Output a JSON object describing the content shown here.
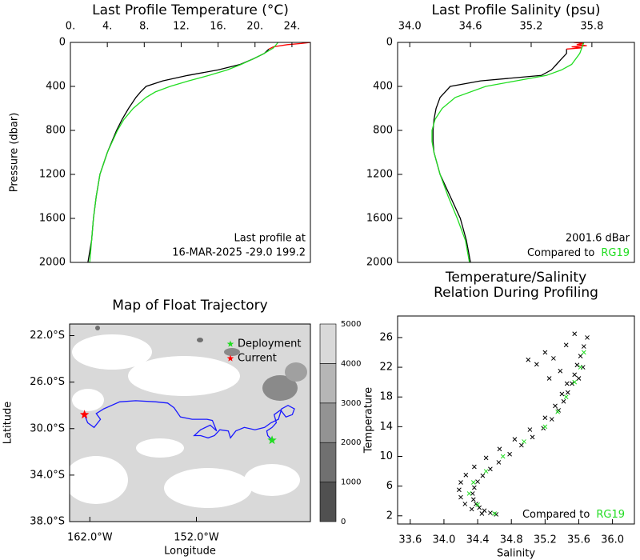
{
  "chart_data": [
    {
      "type": "line",
      "title": "Last Profile Temperature (°C)",
      "y_label": "Pressure (dbar)",
      "x_axis_position": "top",
      "y_inverted": true,
      "xlim": [
        0,
        26
      ],
      "xticks": [
        {
          "value": 0,
          "label": "0."
        },
        {
          "value": 4,
          "label": "4."
        },
        {
          "value": 8,
          "label": "8."
        },
        {
          "value": 12,
          "label": "12."
        },
        {
          "value": 16,
          "label": "16."
        },
        {
          "value": 20,
          "label": "20."
        },
        {
          "value": 24,
          "label": "24."
        }
      ],
      "ylim": [
        0,
        2000
      ],
      "yticks": [
        0,
        400,
        800,
        1200,
        1600,
        2000
      ],
      "series": [
        {
          "color": "#000000",
          "y": [
            60,
            100,
            150,
            200,
            250,
            300,
            350,
            400,
            450,
            500,
            600,
            700,
            800,
            1000,
            1200,
            1400,
            1600,
            1800,
            2000
          ],
          "x": [
            21.5,
            21,
            19.8,
            18.4,
            16,
            12.7,
            10,
            8.2,
            7.6,
            7.1,
            6.3,
            5.6,
            5,
            4,
            3.2,
            2.8,
            2.5,
            2.3,
            1.9
          ]
        },
        {
          "color": "#ff0000",
          "y": [
            0,
            10,
            20,
            40,
            60
          ],
          "x": [
            26,
            25,
            23.5,
            22,
            21.5
          ]
        },
        {
          "color": "#22dd22",
          "y": [
            0,
            50,
            100,
            150,
            200,
            250,
            300,
            350,
            400,
            450,
            500,
            600,
            700,
            800,
            1000,
            1200,
            1400,
            1600,
            1800,
            2000
          ],
          "x": [
            22.5,
            22,
            21,
            19.8,
            18.5,
            17,
            15,
            12.8,
            10.8,
            9.2,
            8.2,
            6.8,
            5.8,
            5.1,
            4,
            3.2,
            2.8,
            2.5,
            2.3,
            2.1
          ]
        }
      ],
      "annotations": [
        "Last profile at",
        "16-MAR-2025   -29.0 199.2"
      ]
    },
    {
      "type": "line",
      "title": "Last Profile Salinity (psu)",
      "x_axis_position": "top",
      "y_inverted": true,
      "xlim": [
        33.88,
        36.22
      ],
      "xticks": [
        {
          "value": 34,
          "label": "34.0"
        },
        34.6,
        35.2,
        35.8
      ],
      "ylim": [
        0,
        2000
      ],
      "yticks": [
        0,
        400,
        800,
        1200,
        1600,
        2000
      ],
      "series": [
        {
          "color": "#000000",
          "y": [
            60,
            100,
            150,
            200,
            250,
            300,
            350,
            400,
            500,
            600,
            700,
            800,
            900,
            1000,
            1200,
            1400,
            1600,
            1800,
            2000
          ],
          "x": [
            35.55,
            35.55,
            35.5,
            35.45,
            35.4,
            35.3,
            34.7,
            34.4,
            34.3,
            34.26,
            34.24,
            34.23,
            34.23,
            34.24,
            34.3,
            34.4,
            34.5,
            34.56,
            34.6
          ]
        },
        {
          "color": "#ff0000",
          "y": [
            0,
            10,
            20,
            30,
            40,
            50,
            60
          ],
          "x": [
            35.62,
            35.72,
            35.65,
            35.75,
            35.6,
            35.7,
            35.55
          ]
        },
        {
          "color": "#22dd22",
          "y": [
            0,
            100,
            200,
            250,
            300,
            350,
            400,
            500,
            600,
            700,
            800,
            900,
            1000,
            1200,
            1400,
            1600,
            1800,
            2000
          ],
          "x": [
            35.72,
            35.68,
            35.6,
            35.5,
            35.35,
            35.05,
            34.75,
            34.45,
            34.32,
            34.25,
            34.22,
            34.22,
            34.24,
            34.3,
            34.38,
            34.47,
            34.55,
            34.59
          ]
        }
      ],
      "annotations": [
        "2001.6 dBar"
      ],
      "comparison": {
        "text": "Compared to",
        "reference": "RG19",
        "reference_color": "#22dd22"
      }
    },
    {
      "type": "map",
      "title": "Map of Float Trajectory",
      "x_label": "Longitude",
      "y_label": "Latitude",
      "x_axis_position": "bottom",
      "xlim": [
        -163.9,
        -141.3
      ],
      "xticks": [
        {
          "value": -162,
          "label": "162.0°W"
        },
        {
          "value": -152,
          "label": "152.0°W"
        }
      ],
      "ylim": [
        -38,
        -21
      ],
      "yticks": [
        {
          "value": -22,
          "label": "22.0°S"
        },
        {
          "value": -26,
          "label": "26.0°S"
        },
        {
          "value": -30,
          "label": "30.0°S"
        },
        {
          "value": -34,
          "label": "34.0°S"
        },
        {
          "value": -38,
          "label": "38.0°S"
        }
      ],
      "series": [
        {
          "color": "#1a1aff",
          "x": [
            -144.9,
            -145.3,
            -145.4,
            -144.9,
            -144.5,
            -144.7,
            -144.1,
            -143.6,
            -143.0,
            -142.8,
            -143.4,
            -144.0,
            -144.3,
            -145.0,
            -145.6,
            -146.5,
            -147.5,
            -148.3,
            -148.8,
            -149.0,
            -149.8,
            -150.3,
            -150.9,
            -151.6,
            -152.2,
            -151.6,
            -150.7,
            -150.1,
            -150.5,
            -151.0,
            -152.4,
            -153.5,
            -154.1,
            -154.7,
            -155.8,
            -157.7,
            -159.2,
            -160.7,
            -161.4,
            -161.0,
            -161.6,
            -162.2,
            -162.5
          ],
          "y": [
            -31.0,
            -30.6,
            -30.2,
            -29.9,
            -29.5,
            -28.8,
            -28.4,
            -29.0,
            -28.8,
            -28.3,
            -28.0,
            -28.3,
            -29.2,
            -29.5,
            -29.9,
            -30.1,
            -29.9,
            -30.2,
            -30.8,
            -30.2,
            -30.1,
            -30.6,
            -30.8,
            -30.6,
            -30.6,
            -30.1,
            -29.7,
            -30.2,
            -29.3,
            -29.2,
            -29.2,
            -29.0,
            -28.2,
            -27.8,
            -27.7,
            -27.6,
            -27.7,
            -28.3,
            -28.7,
            -29.2,
            -29.9,
            -29.5,
            -28.8
          ]
        }
      ],
      "markers": [
        {
          "name": "Deployment",
          "color": "#22dd22",
          "x": -144.9,
          "y": -31.0
        },
        {
          "name": "Current",
          "color": "#ff0000",
          "x": -162.5,
          "y": -28.8
        }
      ],
      "colorbar": {
        "levels": [
          0,
          1000,
          2000,
          3000,
          4000,
          5000
        ],
        "colors": [
          "#505050",
          "#707070",
          "#939393",
          "#b6b6b6",
          "#d9d9d9"
        ]
      }
    },
    {
      "type": "scatter",
      "title": [
        "Temperature/Salinity",
        "Relation During Profiling"
      ],
      "x_label": "Salinity",
      "y_label": "Temperature",
      "x_axis_position": "bottom",
      "xlim": [
        33.45,
        36.26
      ],
      "xticks": [
        33.6,
        {
          "value": 34,
          "label": "34.0"
        },
        34.4,
        34.8,
        35.2,
        35.6,
        {
          "value": 36,
          "label": "36.0"
        }
      ],
      "ylim": [
        0.9,
        28.9
      ],
      "yticks": [
        2,
        6,
        10,
        14,
        18,
        22,
        26
      ],
      "series": [
        {
          "color": "#000000",
          "x": [
            34.62,
            34.55,
            34.48,
            34.42,
            34.38,
            34.35,
            34.34,
            34.36,
            34.4,
            34.46,
            34.55,
            34.65,
            34.78,
            34.92,
            35.05,
            35.18,
            35.28,
            35.36,
            35.42,
            35.47,
            35.52,
            35.55,
            35.58,
            35.62,
            35.66,
            35.7,
            34.45,
            34.33,
            34.25,
            34.2,
            34.18,
            34.2,
            34.26,
            34.36,
            34.5,
            34.66,
            34.84,
            35.02,
            35.2,
            35.32,
            35.4,
            35.46,
            35.0,
            35.1,
            35.2,
            35.3,
            35.45,
            35.55,
            35.38,
            35.25,
            35.6,
            35.65
          ],
          "y": [
            2.2,
            2.4,
            2.7,
            3.1,
            3.6,
            4.2,
            5.0,
            5.8,
            6.6,
            7.4,
            8.3,
            9.2,
            10.3,
            11.5,
            12.6,
            13.8,
            15.0,
            16.2,
            17.4,
            18.6,
            19.8,
            21.0,
            22.3,
            23.5,
            24.8,
            26.0,
            2.3,
            2.9,
            3.6,
            4.5,
            5.5,
            6.5,
            7.5,
            8.6,
            9.8,
            11.0,
            12.3,
            13.6,
            15.2,
            16.8,
            18.4,
            19.8,
            23.0,
            22.4,
            24.0,
            23.2,
            25.0,
            26.5,
            21.5,
            20.5,
            20.5,
            22.0
          ]
        },
        {
          "color": "#22dd22",
          "x": [
            34.6,
            34.4,
            34.3,
            34.35,
            34.5,
            34.7,
            34.95,
            35.2,
            35.35,
            35.45,
            35.55,
            35.62,
            35.66
          ],
          "y": [
            2.3,
            3.5,
            5,
            6.5,
            8,
            10,
            12,
            14,
            16,
            18,
            20,
            22,
            24
          ]
        }
      ],
      "comparison": {
        "text": "Compared to",
        "reference": "RG19",
        "reference_color": "#22dd22"
      }
    }
  ]
}
